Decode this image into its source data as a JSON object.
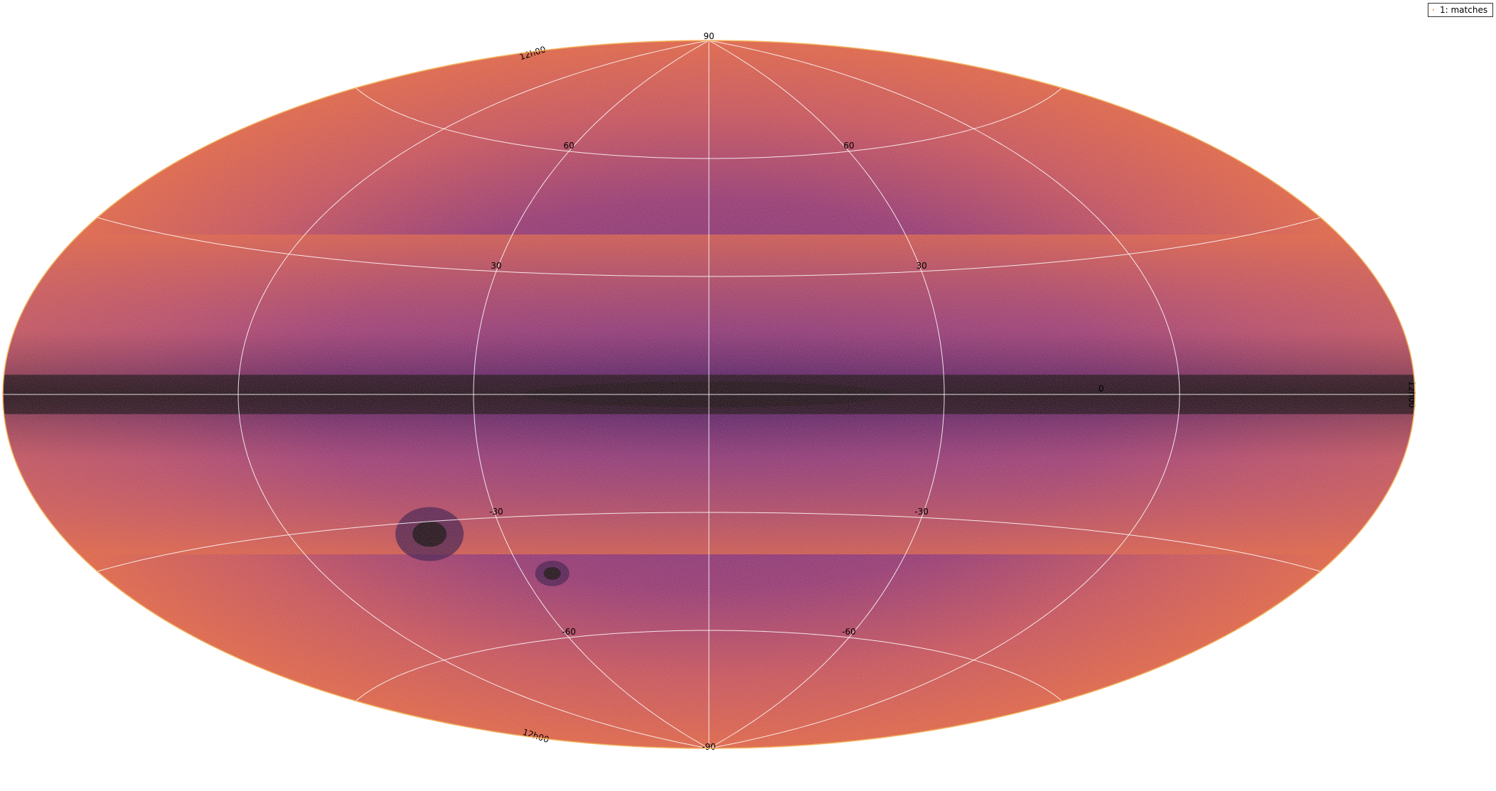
{
  "chart_data": {
    "type": "heatmap",
    "projection": "aitoff",
    "title": "",
    "xlabel": "",
    "ylabel": "",
    "colormap": [
      "#0b0418",
      "#2a0c4e",
      "#4c1877",
      "#7c2b82",
      "#a8407a",
      "#cb5568",
      "#e0714c",
      "#f08a3c",
      "#f5a64a"
    ],
    "lon_range": [
      -180,
      180
    ],
    "lat_range": [
      -90,
      90
    ],
    "grid": true,
    "lat_ticks": [
      {
        "value": 90,
        "label": "90"
      },
      {
        "value": 60,
        "label": "60"
      },
      {
        "value": 30,
        "label": "30"
      },
      {
        "value": 0,
        "label": "0"
      },
      {
        "value": -30,
        "label": "-30"
      },
      {
        "value": -60,
        "label": "-60"
      },
      {
        "value": -90,
        "label": "-90"
      }
    ],
    "lon_tick_label": "12h00",
    "legend": {
      "position": "top-right",
      "label": "1: matches",
      "marker_color": "#f5a64a"
    },
    "features": [
      {
        "name": "galactic-plane",
        "lon_range": [
          -180,
          180
        ],
        "lat": 0,
        "width": 5,
        "relative_density": "very high"
      },
      {
        "name": "large-magellanic-cloud",
        "lon": 80.9,
        "lat": -32.9,
        "relative_density": "high"
      },
      {
        "name": "small-magellanic-cloud",
        "lon": 50.7,
        "lat": -44.3,
        "relative_density": "high"
      }
    ]
  }
}
